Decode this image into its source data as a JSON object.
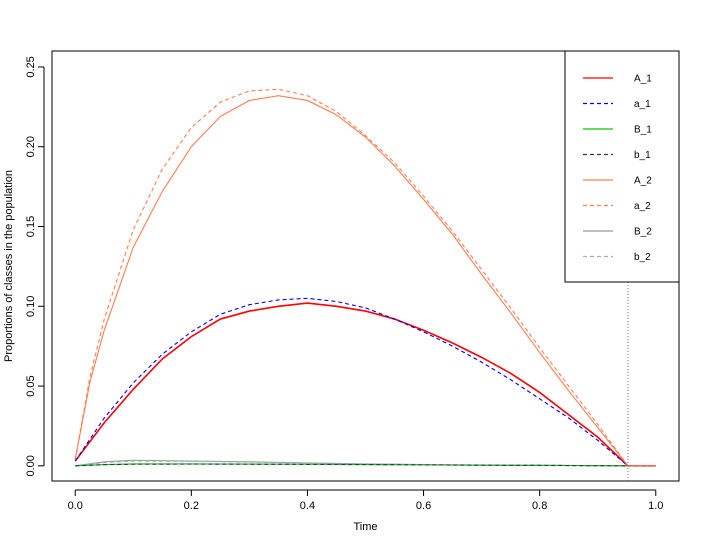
{
  "chart_data": {
    "type": "line",
    "xlabel": "Time",
    "ylabel": "Proportions of classes in the population",
    "xlim": [
      -0.04,
      1.04
    ],
    "ylim": [
      -0.0095,
      0.26
    ],
    "xticks": [
      0.0,
      0.2,
      0.4,
      0.6,
      0.8,
      1.0
    ],
    "xtick_labels": [
      "0.0",
      "0.2",
      "0.4",
      "0.6",
      "0.8",
      "1.0"
    ],
    "yticks": [
      0.0,
      0.05,
      0.1,
      0.15,
      0.2,
      0.25
    ],
    "ytick_labels": [
      "0.00",
      "0.05",
      "0.10",
      "0.15",
      "0.20",
      "0.25"
    ],
    "vline": {
      "x": 0.952,
      "style": "dotted",
      "color": "#555555"
    },
    "legend": {
      "position": "top-right"
    },
    "grid": false,
    "series": [
      {
        "name": "A_1",
        "color": "#ff0000",
        "dash": "solid",
        "x": [
          0.0,
          0.05,
          0.1,
          0.15,
          0.2,
          0.25,
          0.3,
          0.35,
          0.4,
          0.45,
          0.5,
          0.55,
          0.6,
          0.65,
          0.7,
          0.75,
          0.8,
          0.85,
          0.9,
          0.952,
          1.0
        ],
        "y": [
          0.003,
          0.027,
          0.048,
          0.067,
          0.081,
          0.092,
          0.097,
          0.1,
          0.102,
          0.1,
          0.097,
          0.092,
          0.085,
          0.077,
          0.068,
          0.058,
          0.046,
          0.032,
          0.018,
          0.0,
          0.0
        ]
      },
      {
        "name": "a_1",
        "color": "#0000ff",
        "dash": "dashed",
        "x": [
          0.0,
          0.05,
          0.1,
          0.15,
          0.2,
          0.25,
          0.3,
          0.35,
          0.4,
          0.45,
          0.5,
          0.55,
          0.6,
          0.65,
          0.7,
          0.75,
          0.8,
          0.85,
          0.9,
          0.952,
          1.0
        ],
        "y": [
          0.003,
          0.03,
          0.052,
          0.07,
          0.084,
          0.095,
          0.101,
          0.104,
          0.105,
          0.103,
          0.099,
          0.092,
          0.084,
          0.075,
          0.065,
          0.054,
          0.042,
          0.03,
          0.016,
          0.0,
          0.0
        ]
      },
      {
        "name": "B_1",
        "color": "#00cc00",
        "dash": "solid",
        "x": [
          0.0,
          0.05,
          0.1,
          0.2,
          0.3,
          0.4,
          0.5,
          0.6,
          0.7,
          0.8,
          0.9,
          0.952,
          1.0
        ],
        "y": [
          0.0,
          0.0008,
          0.0012,
          0.0012,
          0.0011,
          0.001,
          0.0008,
          0.0006,
          0.0004,
          0.0003,
          0.0001,
          0.0,
          0.0
        ]
      },
      {
        "name": "b_1",
        "color": "#333355",
        "dash": "dashed",
        "x": [
          0.0,
          0.05,
          0.1,
          0.2,
          0.3,
          0.4,
          0.5,
          0.6,
          0.7,
          0.8,
          0.9,
          0.952,
          1.0
        ],
        "y": [
          0.0,
          0.0007,
          0.001,
          0.0011,
          0.001,
          0.0009,
          0.0008,
          0.0006,
          0.0004,
          0.0003,
          0.0001,
          0.0,
          0.0
        ]
      },
      {
        "name": "A_2",
        "color": "#ff7f50",
        "dash": "solid",
        "x": [
          0.0,
          0.025,
          0.05,
          0.1,
          0.15,
          0.2,
          0.25,
          0.3,
          0.35,
          0.4,
          0.45,
          0.5,
          0.55,
          0.6,
          0.65,
          0.7,
          0.75,
          0.8,
          0.85,
          0.9,
          0.952,
          1.0
        ],
        "y": [
          0.004,
          0.052,
          0.085,
          0.137,
          0.172,
          0.2,
          0.219,
          0.229,
          0.232,
          0.229,
          0.22,
          0.206,
          0.188,
          0.167,
          0.145,
          0.12,
          0.096,
          0.071,
          0.047,
          0.024,
          0.0,
          0.0
        ]
      },
      {
        "name": "a_2",
        "color": "#ff7f50",
        "dash": "dashed",
        "x": [
          0.0,
          0.025,
          0.05,
          0.1,
          0.15,
          0.2,
          0.25,
          0.3,
          0.35,
          0.4,
          0.45,
          0.5,
          0.55,
          0.6,
          0.65,
          0.7,
          0.75,
          0.8,
          0.85,
          0.9,
          0.952,
          1.0
        ],
        "y": [
          0.004,
          0.055,
          0.092,
          0.148,
          0.186,
          0.212,
          0.228,
          0.235,
          0.236,
          0.232,
          0.222,
          0.207,
          0.19,
          0.169,
          0.147,
          0.123,
          0.099,
          0.074,
          0.05,
          0.026,
          0.0,
          0.0
        ]
      },
      {
        "name": "B_2",
        "color": "#999999",
        "dash": "solid",
        "x": [
          0.0,
          0.05,
          0.1,
          0.2,
          0.3,
          0.4,
          0.5,
          0.6,
          0.7,
          0.8,
          0.9,
          0.952,
          1.0
        ],
        "y": [
          0.0,
          0.0025,
          0.0035,
          0.003,
          0.0025,
          0.0018,
          0.0012,
          0.0008,
          0.0005,
          0.0003,
          0.0001,
          0.0,
          0.0
        ]
      },
      {
        "name": "b_2",
        "color": "#aaaacc",
        "dash": "dashed",
        "x": [
          0.0,
          0.05,
          0.1,
          0.2,
          0.3,
          0.4,
          0.5,
          0.6,
          0.7,
          0.8,
          0.9,
          0.952,
          1.0
        ],
        "y": [
          0.0,
          0.002,
          0.003,
          0.0028,
          0.0023,
          0.0017,
          0.0011,
          0.0007,
          0.0004,
          0.0002,
          0.0001,
          0.0,
          0.0
        ]
      }
    ]
  }
}
